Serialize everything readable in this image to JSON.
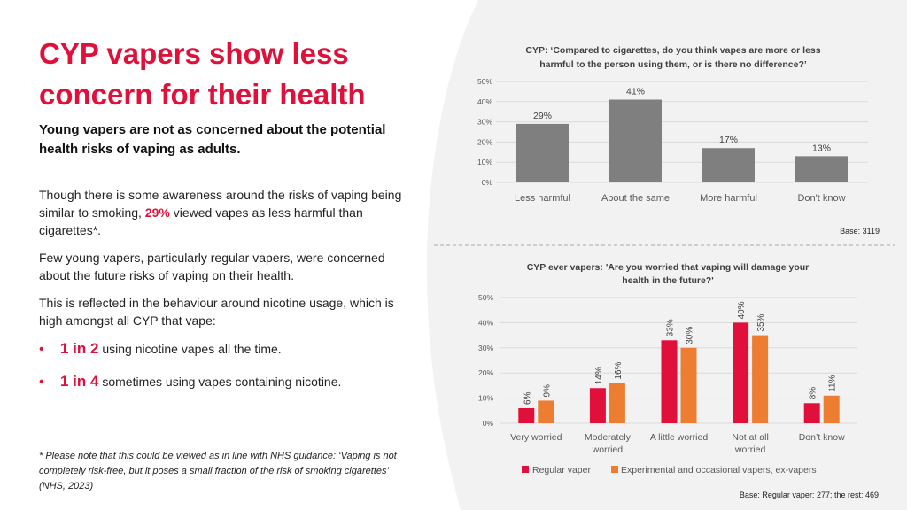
{
  "left": {
    "title": "CYP vapers show less concern for their health",
    "subtitle": "Young vapers are not as concerned about the potential health risks of vaping as adults.",
    "para1": {
      "before": "Though there is some awareness around the risks of vaping being similar to smoking, ",
      "highlight": "29%",
      "after": " viewed vapes as less harmful than cigarettes*."
    },
    "para2": "Few young vapers, particularly regular vapers, were concerned about the future risks of vaping on their health.",
    "para3": "This is reflected in the behaviour around nicotine usage, which is high amongst all CYP that vape:",
    "bullets": [
      {
        "bold": "1 in 2",
        "text": " using nicotine vapes all the time."
      },
      {
        "bold": "1 in 4",
        "text": " sometimes using vapes containing nicotine."
      }
    ],
    "bullet_marker": "•",
    "footnote": "* Please note that this could be viewed as in line with NHS guidance: ‘Vaping is not completely risk-free, but it poses a small fraction of the risk of smoking cigarettes’ (NHS, 2023)"
  },
  "colors": {
    "accent": "#e0103a",
    "grey_bar": "#7f7f7f",
    "orange_bar": "#ed7d31",
    "red_bar": "#e0103a",
    "panel": "#f2f2f2"
  },
  "chart_data": [
    {
      "type": "bar",
      "title_lines": [
        "CYP: ‘Compared to cigarettes, do you think  vapes are more or less",
        "harmful to the person using them, or is there no difference?’"
      ],
      "categories": [
        "Less harmful",
        "About the same",
        "More harmful",
        "Don't know"
      ],
      "values": [
        29,
        41,
        17,
        13
      ],
      "value_labels": [
        "29%",
        "41%",
        "17%",
        "13%"
      ],
      "ylim": [
        0,
        50
      ],
      "yticks": [
        0,
        10,
        20,
        30,
        40,
        50
      ],
      "ytick_labels": [
        "0%",
        "10%",
        "20%",
        "30%",
        "40%",
        "50%"
      ],
      "grid": true,
      "base": "Base: 3119"
    },
    {
      "type": "bar",
      "title_lines": [
        "CYP ever vapers: 'Are you worried that vaping will damage your",
        "health in the future?'"
      ],
      "categories": [
        [
          "Very worried"
        ],
        [
          "Moderately",
          "worried"
        ],
        [
          "A little worried"
        ],
        [
          "Not at all",
          "worried"
        ],
        [
          "Don’t know"
        ]
      ],
      "series": [
        {
          "name": "Regular vaper",
          "values": [
            6,
            14,
            33,
            40,
            8
          ],
          "labels": [
            "6%",
            "14%",
            "33%",
            "40%",
            "8%"
          ]
        },
        {
          "name": "Experimental and occasional vapers, ex-vapers",
          "values": [
            9,
            16,
            30,
            35,
            11
          ],
          "labels": [
            "9%",
            "16%",
            "30%",
            "35%",
            "11%"
          ]
        }
      ],
      "ylim": [
        0,
        50
      ],
      "yticks": [
        0,
        10,
        20,
        30,
        40,
        50
      ],
      "ytick_labels": [
        "0%",
        "10%",
        "20%",
        "30%",
        "40%",
        "50%"
      ],
      "grid": true,
      "legend": "bottom",
      "base": "Base: Regular vaper: 277; the rest: 469"
    }
  ]
}
